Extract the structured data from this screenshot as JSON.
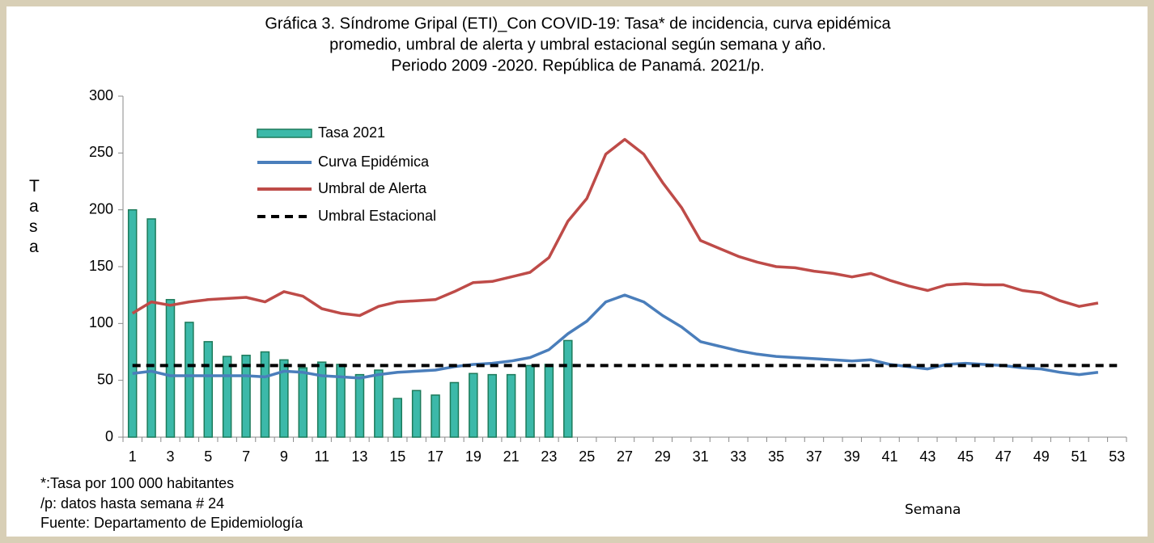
{
  "chart_data": {
    "type": "combo",
    "title": [
      "Gráfica 3. Síndrome Gripal (ETI)_Con COVID-19: Tasa* de incidencia, curva epidémica",
      "promedio, umbral de alerta y umbral estacional según semana y año.",
      "Periodo 2009 -2020.  República de Panamá. 2021/p."
    ],
    "ylabel": "Tasa",
    "xlabel": "Semana",
    "notes": [
      "*:Tasa por 100 000 habitantes",
      "/p: datos hasta semana # 24",
      "Fuente: Departamento de Epidemiología"
    ],
    "categories": [
      1,
      null,
      3,
      null,
      5,
      null,
      7,
      null,
      9,
      null,
      11,
      null,
      13,
      null,
      15,
      null,
      17,
      null,
      19,
      null,
      21,
      null,
      23,
      null,
      25,
      null,
      27,
      null,
      29,
      null,
      31,
      null,
      33,
      null,
      35,
      null,
      37,
      null,
      39,
      null,
      41,
      null,
      43,
      null,
      45,
      null,
      47,
      null,
      49,
      null,
      51,
      null,
      53
    ],
    "ylim": [
      0,
      300
    ],
    "yticks": [
      0,
      50,
      100,
      150,
      200,
      250,
      300
    ],
    "legend": "upper-left",
    "series": [
      {
        "name": "Tasa 2021",
        "mark": "bar",
        "color": "#3cb9a9",
        "edge": "#1d7a5a",
        "values": [
          200,
          192,
          121,
          101,
          84,
          71,
          72,
          75,
          68,
          61,
          66,
          64,
          55,
          59,
          34,
          41,
          37,
          48,
          56,
          55,
          55,
          63,
          64,
          85,
          null,
          null,
          null,
          null,
          null,
          null,
          null,
          null,
          null,
          null,
          null,
          null,
          null,
          null,
          null,
          null,
          null,
          null,
          null,
          null,
          null,
          null,
          null,
          null,
          null,
          null,
          null,
          null,
          null
        ]
      },
      {
        "name": "Curva Epidémica",
        "mark": "line",
        "color": "#4a7ebb",
        "values": [
          56,
          58,
          54,
          54,
          54,
          54,
          54,
          53,
          58,
          57,
          54,
          53,
          52,
          55,
          57,
          58,
          59,
          62,
          64,
          65,
          67,
          70,
          77,
          91,
          102,
          119,
          125,
          119,
          107,
          97,
          84,
          80,
          76,
          73,
          71,
          70,
          69,
          68,
          67,
          68,
          64,
          62,
          60,
          64,
          65,
          64,
          63,
          61,
          60,
          57,
          55,
          57,
          null
        ]
      },
      {
        "name": "Umbral de Alerta",
        "mark": "line",
        "color": "#be4b48",
        "values": [
          109,
          119,
          116,
          119,
          121,
          122,
          123,
          119,
          128,
          124,
          113,
          109,
          107,
          115,
          119,
          120,
          121,
          128,
          136,
          137,
          141,
          145,
          158,
          190,
          210,
          249,
          262,
          249,
          224,
          202,
          173,
          166,
          159,
          154,
          150,
          149,
          146,
          144,
          141,
          144,
          138,
          133,
          129,
          134,
          135,
          134,
          134,
          129,
          127,
          120,
          115,
          118,
          null
        ]
      },
      {
        "name": "Umbral Estacional",
        "mark": "dashed",
        "color": "#000000",
        "values": [
          63,
          63,
          63,
          63,
          63,
          63,
          63,
          63,
          63,
          63,
          63,
          63,
          63,
          63,
          63,
          63,
          63,
          63,
          63,
          63,
          63,
          63,
          63,
          63,
          63,
          63,
          63,
          63,
          63,
          63,
          63,
          63,
          63,
          63,
          63,
          63,
          63,
          63,
          63,
          63,
          63,
          63,
          63,
          63,
          63,
          63,
          63,
          63,
          63,
          63,
          63,
          63,
          63
        ]
      }
    ]
  }
}
